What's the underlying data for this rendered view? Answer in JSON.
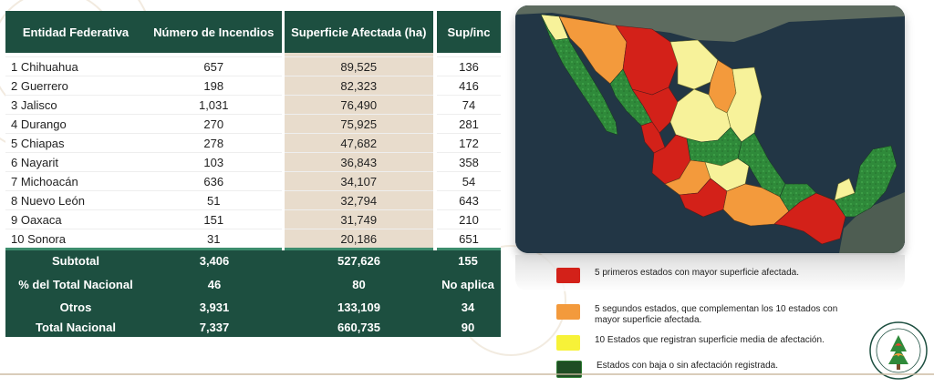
{
  "table": {
    "headers": [
      "Entidad Federativa",
      "Número de Incendios",
      "Superficie Afectada (ha)",
      "Sup/inc"
    ],
    "rows": [
      {
        "entity": "1 Chihuahua",
        "fires": "657",
        "area": "89,525",
        "ratio": "136"
      },
      {
        "entity": "2 Guerrero",
        "fires": "198",
        "area": "82,323",
        "ratio": "416"
      },
      {
        "entity": "3 Jalisco",
        "fires": "1,031",
        "area": "76,490",
        "ratio": "74"
      },
      {
        "entity": "4 Durango",
        "fires": "270",
        "area": "75,925",
        "ratio": "281"
      },
      {
        "entity": "5 Chiapas",
        "fires": "278",
        "area": "47,682",
        "ratio": "172"
      },
      {
        "entity": "6 Nayarit",
        "fires": "103",
        "area": "36,843",
        "ratio": "358"
      },
      {
        "entity": "7 Michoacán",
        "fires": "636",
        "area": "34,107",
        "ratio": "54"
      },
      {
        "entity": "8 Nuevo León",
        "fires": "51",
        "area": "32,794",
        "ratio": "643"
      },
      {
        "entity": "9 Oaxaca",
        "fires": "151",
        "area": "31,749",
        "ratio": "210"
      },
      {
        "entity": "10 Sonora",
        "fires": "31",
        "area": "20,186",
        "ratio": "651"
      }
    ],
    "summary": [
      {
        "label": "Subtotal",
        "fires": "3,406",
        "area": "527,626",
        "ratio": "155"
      },
      {
        "label": "% del Total Nacional",
        "fires": "46",
        "area": "80",
        "ratio": "No aplica"
      },
      {
        "label": "Otros",
        "fires": "3,931",
        "area": "133,109",
        "ratio": "34"
      },
      {
        "label": "Total Nacional",
        "fires": "7,337",
        "area": "660,735",
        "ratio": "90"
      }
    ]
  },
  "legend": [
    {
      "color": "#d32119",
      "text": "5 primeros estados con mayor superficie afectada."
    },
    {
      "color": "#f39a3c",
      "text": "5 segundos estados, que complementan los 10 estados con mayor superficie afectada."
    },
    {
      "color": "#f7f238",
      "text": "10 Estados que registran superficie media de afectación."
    },
    {
      "color": "#2e7d32",
      "text": "Estados con baja o sin afectación registrada."
    }
  ],
  "map_colors": {
    "sea": "#223645",
    "land_outside": "#5d6b5f",
    "red": "#d32119",
    "orange": "#f39a3c",
    "yellow": "#f7f29a",
    "green": "#2f8a3a"
  },
  "seal": {
    "text": "PROGRAMA DE MANEJO DEL FUEGO MÉXICO"
  }
}
